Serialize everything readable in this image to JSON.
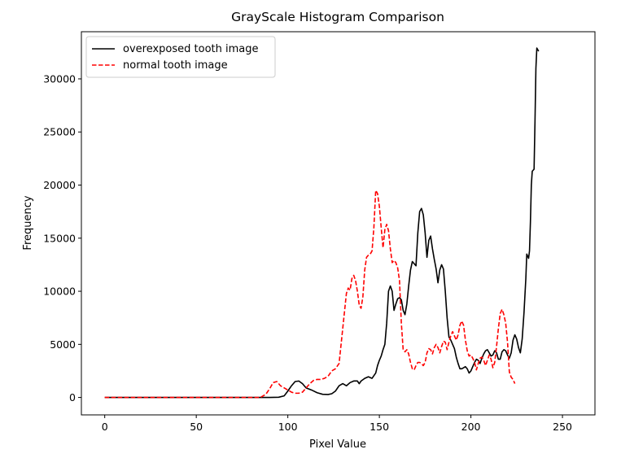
{
  "chart_data": {
    "type": "line",
    "title": "GrayScale Histogram Comparison",
    "xlabel": "Pixel Value",
    "ylabel": "Frequency",
    "xlim": [
      -12.75,
      267.75
    ],
    "ylim": [
      -1640,
      34440
    ],
    "xticks": [
      0,
      50,
      100,
      150,
      200,
      250
    ],
    "yticks": [
      0,
      5000,
      10000,
      15000,
      20000,
      25000,
      30000
    ],
    "grid": false,
    "legend_position": "upper-left",
    "series": [
      {
        "name": "overexposed tooth image",
        "color": "#000000",
        "style": "solid",
        "points": [
          [
            0,
            0
          ],
          [
            90,
            0
          ],
          [
            95,
            20
          ],
          [
            98,
            150
          ],
          [
            100,
            600
          ],
          [
            102,
            1100
          ],
          [
            104,
            1500
          ],
          [
            106,
            1550
          ],
          [
            108,
            1300
          ],
          [
            110,
            900
          ],
          [
            113,
            700
          ],
          [
            116,
            450
          ],
          [
            119,
            300
          ],
          [
            122,
            280
          ],
          [
            124,
            350
          ],
          [
            126,
            600
          ],
          [
            128,
            1100
          ],
          [
            130,
            1300
          ],
          [
            132,
            1100
          ],
          [
            134,
            1400
          ],
          [
            136,
            1550
          ],
          [
            138,
            1550
          ],
          [
            139,
            1300
          ],
          [
            140,
            1550
          ],
          [
            142,
            1800
          ],
          [
            144,
            1950
          ],
          [
            146,
            1800
          ],
          [
            148,
            2300
          ],
          [
            149,
            3000
          ],
          [
            150,
            3500
          ],
          [
            151,
            3900
          ],
          [
            152,
            4500
          ],
          [
            153,
            5000
          ],
          [
            154,
            7000
          ],
          [
            155,
            10000
          ],
          [
            156,
            10500
          ],
          [
            157,
            10000
          ],
          [
            158,
            8200
          ],
          [
            159,
            8800
          ],
          [
            160,
            9300
          ],
          [
            161,
            9400
          ],
          [
            162,
            9200
          ],
          [
            163,
            8200
          ],
          [
            164,
            7800
          ],
          [
            165,
            8800
          ],
          [
            166,
            10500
          ],
          [
            167,
            12000
          ],
          [
            168,
            12800
          ],
          [
            169,
            12600
          ],
          [
            170,
            12400
          ],
          [
            171,
            15500
          ],
          [
            172,
            17500
          ],
          [
            173,
            17800
          ],
          [
            174,
            17200
          ],
          [
            175,
            15500
          ],
          [
            176,
            13200
          ],
          [
            177,
            14800
          ],
          [
            178,
            15200
          ],
          [
            179,
            14000
          ],
          [
            180,
            13000
          ],
          [
            181,
            12100
          ],
          [
            182,
            10800
          ],
          [
            183,
            12000
          ],
          [
            184,
            12500
          ],
          [
            185,
            12100
          ],
          [
            186,
            10000
          ],
          [
            187,
            7500
          ],
          [
            188,
            5700
          ],
          [
            189,
            5400
          ],
          [
            190,
            5000
          ],
          [
            191,
            4600
          ],
          [
            192,
            3800
          ],
          [
            193,
            3200
          ],
          [
            194,
            2700
          ],
          [
            195,
            2700
          ],
          [
            196,
            2800
          ],
          [
            197,
            2900
          ],
          [
            198,
            2700
          ],
          [
            199,
            2300
          ],
          [
            200,
            2500
          ],
          [
            201,
            2900
          ],
          [
            202,
            3300
          ],
          [
            203,
            3600
          ],
          [
            204,
            3500
          ],
          [
            205,
            3200
          ],
          [
            206,
            3700
          ],
          [
            207,
            4100
          ],
          [
            208,
            4400
          ],
          [
            209,
            4500
          ],
          [
            210,
            4200
          ],
          [
            211,
            3900
          ],
          [
            212,
            4000
          ],
          [
            213,
            4400
          ],
          [
            214,
            4200
          ],
          [
            215,
            3600
          ],
          [
            216,
            3600
          ],
          [
            217,
            4300
          ],
          [
            218,
            4500
          ],
          [
            219,
            4400
          ],
          [
            220,
            4000
          ],
          [
            221,
            3700
          ],
          [
            222,
            4200
          ],
          [
            223,
            5400
          ],
          [
            224,
            5900
          ],
          [
            225,
            5500
          ],
          [
            226,
            4700
          ],
          [
            227,
            4200
          ],
          [
            228,
            5500
          ],
          [
            229,
            8000
          ],
          [
            230,
            11200
          ],
          [
            230.5,
            13500
          ],
          [
            231,
            13300
          ],
          [
            231.5,
            13100
          ],
          [
            232,
            13800
          ],
          [
            232.5,
            16500
          ],
          [
            233,
            20000
          ],
          [
            233.5,
            21300
          ],
          [
            234,
            21400
          ],
          [
            234.5,
            21500
          ],
          [
            235,
            26000
          ],
          [
            235.5,
            31000
          ],
          [
            236,
            32900
          ],
          [
            237,
            32600
          ]
        ]
      },
      {
        "name": "normal tooth image",
        "color": "#ff0000",
        "style": "dashed",
        "points": [
          [
            0,
            0
          ],
          [
            85,
            0
          ],
          [
            88,
            300
          ],
          [
            90,
            800
          ],
          [
            92,
            1400
          ],
          [
            94,
            1500
          ],
          [
            96,
            1100
          ],
          [
            98,
            900
          ],
          [
            100,
            700
          ],
          [
            102,
            500
          ],
          [
            104,
            400
          ],
          [
            106,
            400
          ],
          [
            108,
            500
          ],
          [
            110,
            900
          ],
          [
            112,
            1300
          ],
          [
            114,
            1600
          ],
          [
            116,
            1700
          ],
          [
            118,
            1700
          ],
          [
            120,
            1800
          ],
          [
            122,
            2000
          ],
          [
            124,
            2500
          ],
          [
            126,
            2700
          ],
          [
            128,
            3200
          ],
          [
            130,
            6500
          ],
          [
            132,
            9800
          ],
          [
            133,
            10300
          ],
          [
            134,
            10100
          ],
          [
            135,
            11200
          ],
          [
            136,
            11500
          ],
          [
            137,
            11000
          ],
          [
            138,
            10000
          ],
          [
            139,
            8700
          ],
          [
            140,
            8400
          ],
          [
            141,
            9500
          ],
          [
            142,
            12000
          ],
          [
            143,
            13200
          ],
          [
            144,
            13400
          ],
          [
            145,
            13500
          ],
          [
            146,
            13800
          ],
          [
            147,
            16000
          ],
          [
            148,
            19500
          ],
          [
            149,
            19200
          ],
          [
            150,
            18000
          ],
          [
            151,
            16000
          ],
          [
            152,
            14100
          ],
          [
            153,
            15800
          ],
          [
            154,
            16300
          ],
          [
            155,
            15700
          ],
          [
            156,
            14000
          ],
          [
            157,
            12700
          ],
          [
            158,
            12900
          ],
          [
            159,
            12700
          ],
          [
            160,
            12200
          ],
          [
            161,
            11000
          ],
          [
            162,
            7000
          ],
          [
            163,
            4500
          ],
          [
            164,
            4300
          ],
          [
            165,
            4500
          ],
          [
            166,
            4100
          ],
          [
            167,
            3300
          ],
          [
            168,
            2700
          ],
          [
            169,
            2600
          ],
          [
            170,
            3000
          ],
          [
            171,
            3300
          ],
          [
            172,
            3300
          ],
          [
            173,
            3200
          ],
          [
            174,
            3000
          ],
          [
            175,
            3300
          ],
          [
            176,
            4200
          ],
          [
            177,
            4600
          ],
          [
            178,
            4500
          ],
          [
            179,
            4100
          ],
          [
            180,
            4700
          ],
          [
            181,
            5000
          ],
          [
            182,
            4700
          ],
          [
            183,
            4200
          ],
          [
            184,
            4800
          ],
          [
            185,
            5300
          ],
          [
            186,
            5200
          ],
          [
            187,
            4500
          ],
          [
            188,
            5200
          ],
          [
            189,
            5800
          ],
          [
            190,
            6200
          ],
          [
            191,
            5800
          ],
          [
            192,
            5400
          ],
          [
            193,
            5900
          ],
          [
            194,
            6800
          ],
          [
            195,
            7200
          ],
          [
            196,
            6800
          ],
          [
            197,
            5400
          ],
          [
            198,
            4400
          ],
          [
            199,
            3900
          ],
          [
            200,
            4000
          ],
          [
            201,
            3700
          ],
          [
            202,
            3300
          ],
          [
            203,
            2600
          ],
          [
            204,
            3200
          ],
          [
            205,
            3700
          ],
          [
            206,
            3800
          ],
          [
            207,
            3500
          ],
          [
            208,
            3000
          ],
          [
            209,
            3500
          ],
          [
            210,
            4000
          ],
          [
            211,
            3600
          ],
          [
            212,
            2800
          ],
          [
            213,
            3300
          ],
          [
            214,
            4800
          ],
          [
            215,
            6500
          ],
          [
            216,
            7900
          ],
          [
            217,
            8300
          ],
          [
            218,
            7800
          ],
          [
            219,
            7000
          ],
          [
            220,
            5200
          ],
          [
            221,
            2400
          ],
          [
            222,
            1900
          ],
          [
            223,
            1700
          ],
          [
            224,
            1300
          ]
        ]
      }
    ]
  }
}
